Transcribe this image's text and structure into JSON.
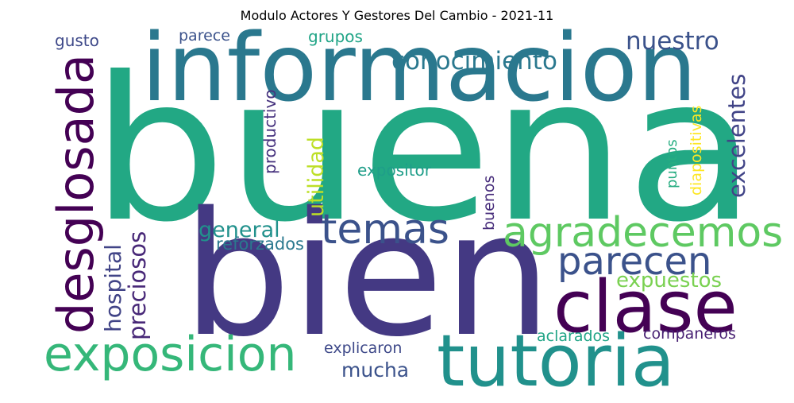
{
  "title": "Modulo Actores Y Gestores Del Cambio - 2021-11",
  "words": [
    {
      "id": "buena",
      "text": "buena",
      "color": "#22a884"
    },
    {
      "id": "bien",
      "text": "bien",
      "color": "#443983"
    },
    {
      "id": "informacion",
      "text": "informacion",
      "color": "#2a788e"
    },
    {
      "id": "tutoria",
      "text": "tutoria",
      "color": "#21918c"
    },
    {
      "id": "clase",
      "text": "clase",
      "color": "#440154"
    },
    {
      "id": "desglosada",
      "text": "desglosada",
      "color": "#440154"
    },
    {
      "id": "exposicion",
      "text": "exposicion",
      "color": "#35b779"
    },
    {
      "id": "agradecemos",
      "text": "agradecemos",
      "color": "#5ec962"
    },
    {
      "id": "temas",
      "text": "temas",
      "color": "#3b528b"
    },
    {
      "id": "parecen",
      "text": "parecen",
      "color": "#3b528b"
    },
    {
      "id": "conocimiento",
      "text": "conocimiento",
      "color": "#2a788e"
    },
    {
      "id": "nuestro",
      "text": "nuestro",
      "color": "#3b528b"
    },
    {
      "id": "excelentes",
      "text": "excelentes",
      "color": "#414487"
    },
    {
      "id": "preciosos",
      "text": "preciosos",
      "color": "#482878"
    },
    {
      "id": "hospital",
      "text": "hospital",
      "color": "#414487"
    },
    {
      "id": "expuestos",
      "text": "expuestos",
      "color": "#7ad151"
    },
    {
      "id": "utilidad",
      "text": "utilidad",
      "color": "#bddf26"
    },
    {
      "id": "mucha",
      "text": "mucha",
      "color": "#3b528b"
    },
    {
      "id": "general",
      "text": "general",
      "color": "#21918c"
    },
    {
      "id": "reforzados",
      "text": "reforzados",
      "color": "#2a788e"
    },
    {
      "id": "expositor",
      "text": "expositor",
      "color": "#1f9e89"
    },
    {
      "id": "productivo",
      "text": "productivo",
      "color": "#46327e"
    },
    {
      "id": "diapositivas",
      "text": "diapositivas",
      "color": "#fde725"
    },
    {
      "id": "puntos",
      "text": "puntos",
      "color": "#27ad81"
    },
    {
      "id": "buenos",
      "text": "buenos",
      "color": "#472d7b"
    },
    {
      "id": "explicaron",
      "text": "explicaron",
      "color": "#3e4989"
    },
    {
      "id": "aclarados",
      "text": "aclarados",
      "color": "#20a486"
    },
    {
      "id": "companeros",
      "text": "companeros",
      "color": "#482173"
    },
    {
      "id": "grupos",
      "text": "grupos",
      "color": "#20a486"
    },
    {
      "id": "gusto",
      "text": "gusto",
      "color": "#3e4989"
    },
    {
      "id": "parece",
      "text": "parece",
      "color": "#3b528b"
    }
  ]
}
